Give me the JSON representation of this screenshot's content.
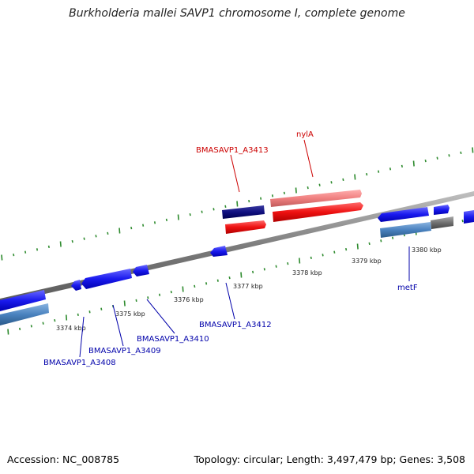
{
  "title": "Burkholderia mallei SAVP1 chromosome I, complete genome",
  "accession": "Accession: NC_008785",
  "summary": "Topology: circular; Length: 3,497,479 bp; Genes: 3,508",
  "colors": {
    "backbone": "#8a8a8a",
    "tick": "#2e8b2e",
    "forward_label": "#cc0000",
    "reverse_label": "#0000aa"
  },
  "ticks": [
    {
      "label": "3374 kbp"
    },
    {
      "label": "3375 kbp"
    },
    {
      "label": "3376 kbp"
    },
    {
      "label": "3377 kbp"
    },
    {
      "label": "3378 kbp"
    },
    {
      "label": "3379 kbp"
    },
    {
      "label": "3380 kbp"
    }
  ],
  "gene_labels": [
    {
      "text": "BMASAVP1_A3413",
      "strand": "forward"
    },
    {
      "text": "nylA",
      "strand": "forward"
    },
    {
      "text": "BMASAVP1_A3412",
      "strand": "reverse"
    },
    {
      "text": "BMASAVP1_A3410",
      "strand": "reverse"
    },
    {
      "text": "BMASAVP1_A3409",
      "strand": "reverse"
    },
    {
      "text": "BMASAVP1_A3408",
      "strand": "reverse"
    },
    {
      "text": "metF",
      "strand": "reverse"
    }
  ]
}
